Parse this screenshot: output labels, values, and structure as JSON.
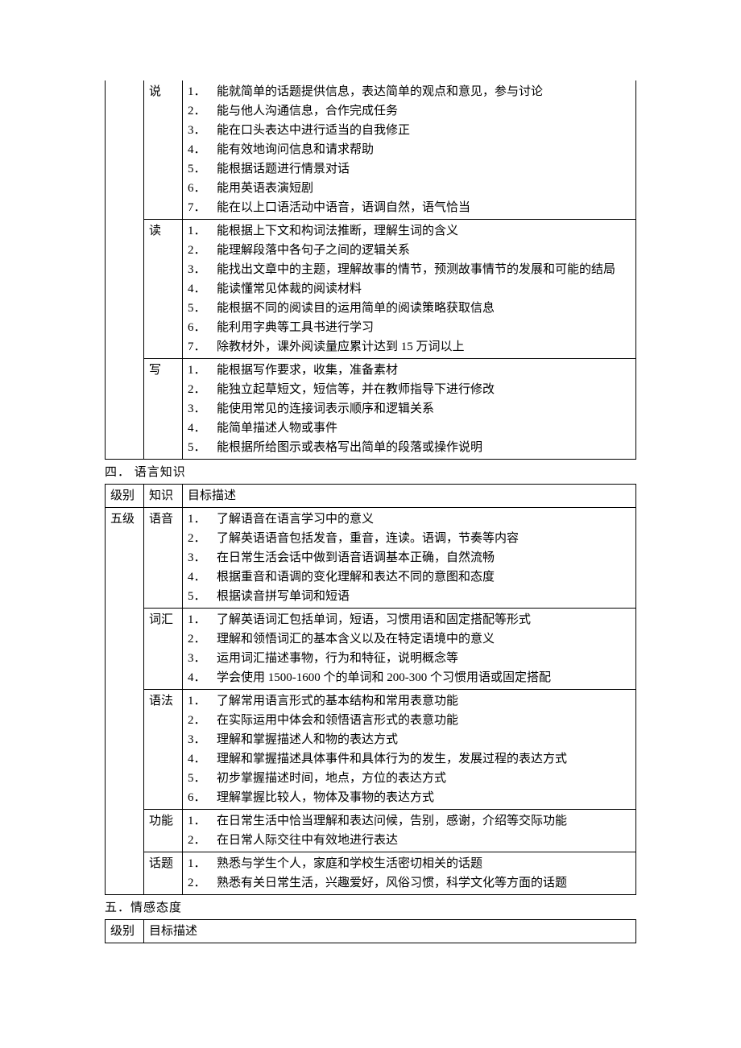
{
  "table1": {
    "rows": [
      {
        "level": "",
        "skill": "说",
        "items": [
          "能就简单的话题提供信息，表达简单的观点和意见，参与讨论",
          "能与他人沟通信息，合作完成任务",
          "能在口头表达中进行适当的自我修正",
          "能有效地询问信息和请求帮助",
          "能根据话题进行情景对话",
          "能用英语表演短剧",
          "能在以上口语活动中语音，语调自然，语气恰当"
        ]
      },
      {
        "level": "",
        "skill": "读",
        "items": [
          "能根据上下文和构词法推断，理解生词的含义",
          "能理解段落中各句子之间的逻辑关系",
          "能找出文章中的主题，理解故事的情节，预测故事情节的发展和可能的结局",
          "能读懂常见体裁的阅读材料",
          "能根据不同的阅读目的运用简单的阅读策略获取信息",
          "能利用字典等工具书进行学习",
          "除教材外，课外阅读量应累计达到 15 万词以上"
        ]
      },
      {
        "level": "",
        "skill": "写",
        "items": [
          "能根据写作要求，收集，准备素材",
          "能独立起草短文，短信等，并在教师指导下进行修改",
          "能使用常见的连接词表示顺序和逻辑关系",
          "能简单描述人物或事件",
          "能根据所给图示或表格写出简单的段落或操作说明"
        ]
      }
    ]
  },
  "section4": {
    "heading": "四．  语言知识",
    "header": {
      "c1": "级别",
      "c2": "知识",
      "c3": "目标描述"
    },
    "rows": [
      {
        "level": "五级",
        "skill": "语音",
        "items": [
          "了解语音在语言学习中的意义",
          "了解英语语音包括发音，重音，连读。语调，节奏等内容",
          "在日常生活会话中做到语音语调基本正确，自然流畅",
          "根据重音和语调的变化理解和表达不同的意图和态度",
          "根据读音拼写单词和短语"
        ]
      },
      {
        "level": "",
        "skill": "词汇",
        "items": [
          "了解英语词汇包括单词，短语，习惯用语和固定搭配等形式",
          "理解和领悟词汇的基本含义以及在特定语境中的意义",
          "运用词汇描述事物，行为和特征，说明概念等",
          "学会使用 1500-1600 个的单词和 200-300 个习惯用语或固定搭配"
        ]
      },
      {
        "level": "",
        "skill": "语法",
        "items": [
          "了解常用语言形式的基本结构和常用表意功能",
          "在实际运用中体会和领悟语言形式的表意功能",
          "理解和掌握描述人和物的表达方式",
          "理解和掌握描述具体事件和具体行为的发生，发展过程的表达方式",
          "初步掌握描述时间，地点，方位的表达方式",
          "理解掌握比较人，物体及事物的表达方式"
        ]
      },
      {
        "level": "",
        "skill": "功能",
        "items": [
          "在日常生活中恰当理解和表达问候，告别，感谢，介绍等交际功能",
          "在日常人际交往中有效地进行表达"
        ]
      },
      {
        "level": "",
        "skill": "话题",
        "items": [
          "熟悉与学生个人，家庭和学校生活密切相关的话题",
          "熟悉有关日常生活，兴趣爱好，风俗习惯，科学文化等方面的话题"
        ]
      }
    ]
  },
  "section5": {
    "heading": "五．情感态度",
    "header": {
      "c1": "级别",
      "c2": "目标描述"
    }
  }
}
